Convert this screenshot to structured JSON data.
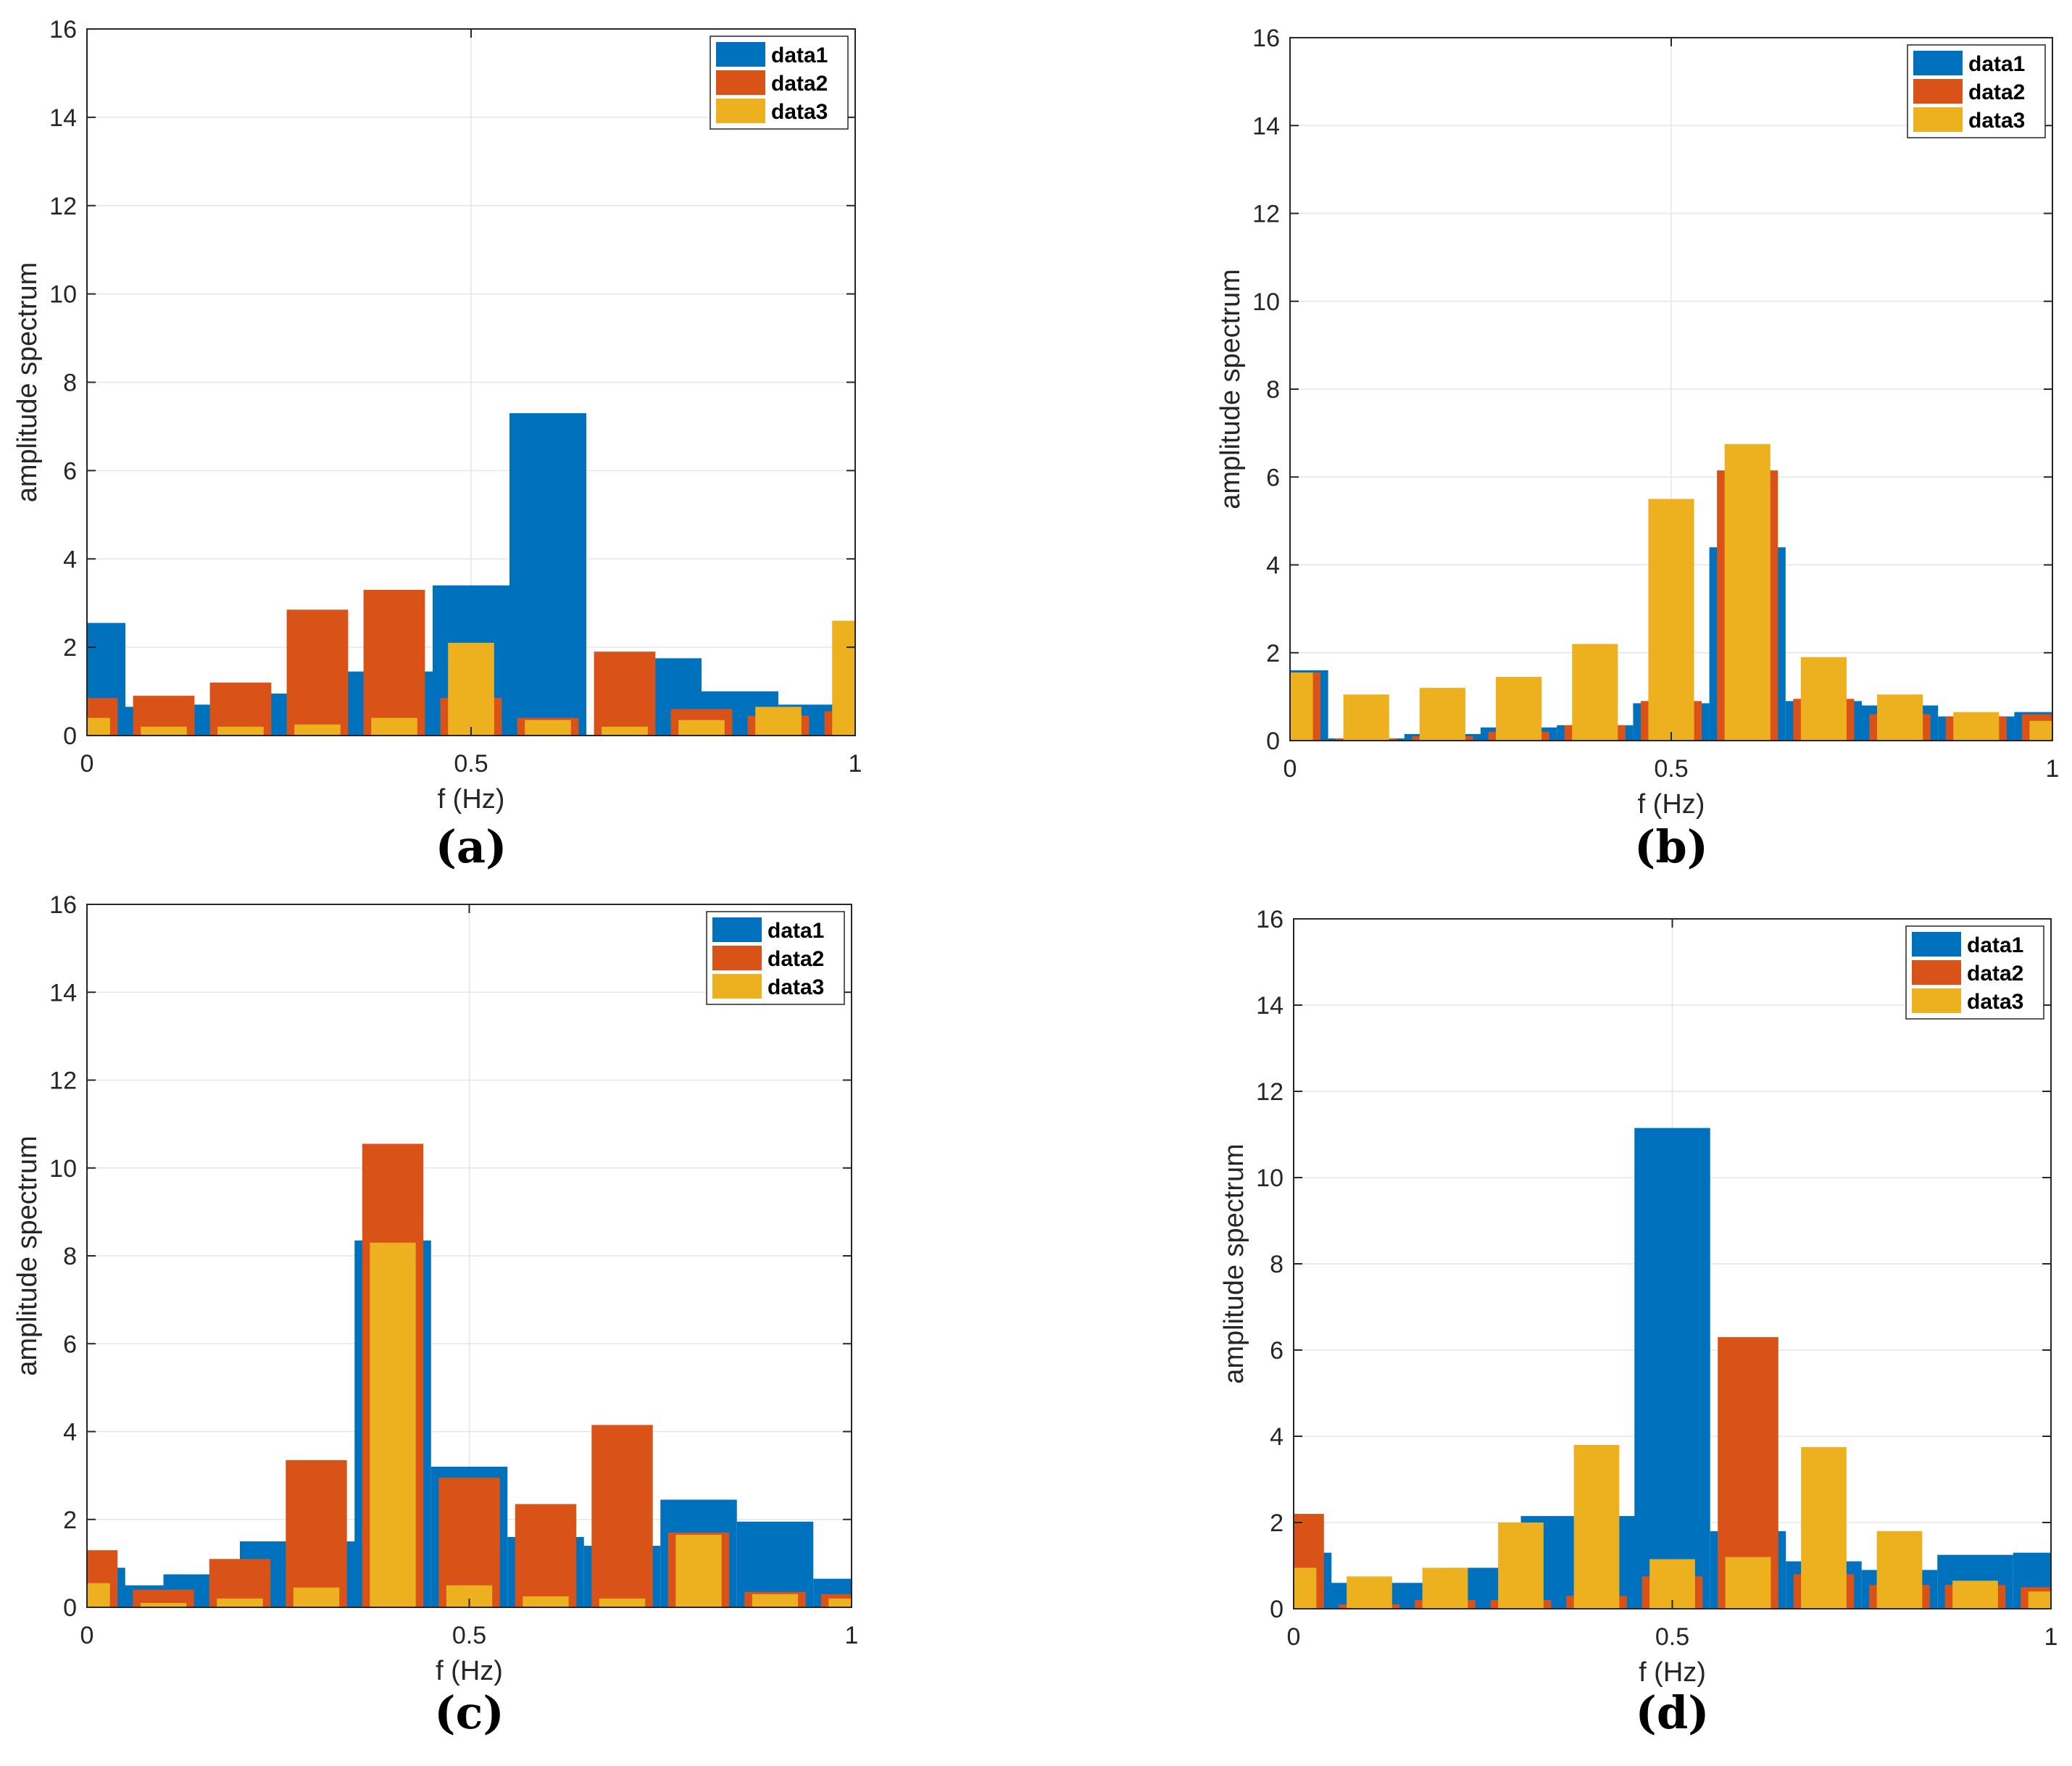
{
  "colors": {
    "data1": "#0072BD",
    "data2": "#D95319",
    "data3": "#EDB120",
    "axis": "#262626",
    "grid": "#e6e6e6"
  },
  "chart_data": [
    {
      "type": "bar",
      "panel_label": "(a)",
      "xlabel": "f (Hz)",
      "ylabel": "amplitude spectrum",
      "xlim": [
        0,
        1
      ],
      "ylim": [
        0,
        16
      ],
      "xticks": [
        0,
        0.5,
        1
      ],
      "xtick_labels": [
        "0",
        "0.5",
        "1"
      ],
      "yticks": [
        0,
        2,
        4,
        6,
        8,
        10,
        12,
        14,
        16
      ],
      "ytick_labels": [
        "0",
        "2",
        "4",
        "6",
        "8",
        "10",
        "12",
        "14",
        "16"
      ],
      "grid": true,
      "legend": "top-right",
      "series": [
        {
          "name": "data1",
          "x": [
            0,
            0.05,
            0.15,
            0.25,
            0.35,
            0.45,
            0.5,
            0.6,
            0.75,
            0.85,
            0.95,
            1.0
          ],
          "values": [
            2.55,
            0.65,
            0.7,
            0.95,
            1.45,
            1.45,
            3.4,
            7.3,
            1.75,
            1.0,
            0.7,
            0.6
          ],
          "width": [
            0.1,
            0.1,
            0.1,
            0.1,
            0.1,
            0.1,
            0.1,
            0.1,
            0.1,
            0.1,
            0.1,
            0.1
          ]
        },
        {
          "name": "data2",
          "x": [
            0,
            0.1,
            0.2,
            0.3,
            0.4,
            0.5,
            0.6,
            0.7,
            0.8,
            0.9,
            1.0
          ],
          "values": [
            0.85,
            0.9,
            1.2,
            2.85,
            3.3,
            0.85,
            0.4,
            1.9,
            0.6,
            0.45,
            0.55
          ],
          "width": [
            0.08,
            0.08,
            0.08,
            0.08,
            0.08,
            0.08,
            0.08,
            0.08,
            0.08,
            0.08,
            0.08
          ]
        },
        {
          "name": "data3",
          "x": [
            0,
            0.1,
            0.2,
            0.3,
            0.4,
            0.5,
            0.6,
            0.7,
            0.8,
            0.9,
            1.0
          ],
          "values": [
            0.4,
            0.2,
            0.2,
            0.25,
            0.4,
            2.1,
            0.35,
            0.2,
            0.35,
            0.65,
            2.6
          ],
          "width": [
            0.06,
            0.06,
            0.06,
            0.06,
            0.06,
            0.06,
            0.06,
            0.06,
            0.06,
            0.06,
            0.06
          ]
        }
      ]
    },
    {
      "type": "bar",
      "panel_label": "(b)",
      "xlabel": "f (Hz)",
      "ylabel": "amplitude spectrum",
      "xlim": [
        0,
        1
      ],
      "ylim": [
        0,
        16
      ],
      "xticks": [
        0,
        0.5,
        1
      ],
      "xtick_labels": [
        "0",
        "0.5",
        "1"
      ],
      "yticks": [
        0,
        2,
        4,
        6,
        8,
        10,
        12,
        14,
        16
      ],
      "ytick_labels": [
        "0",
        "2",
        "4",
        "6",
        "8",
        "10",
        "12",
        "14",
        "16"
      ],
      "grid": true,
      "legend": "top-right",
      "series": [
        {
          "name": "data1",
          "x": [
            0,
            0.1,
            0.2,
            0.3,
            0.4,
            0.5,
            0.6,
            0.7,
            0.8,
            0.9,
            1.0
          ],
          "values": [
            1.6,
            0.05,
            0.15,
            0.3,
            0.35,
            0.85,
            4.4,
            0.9,
            0.8,
            0.55,
            0.65
          ],
          "width": [
            0.1,
            0.1,
            0.1,
            0.1,
            0.1,
            0.1,
            0.1,
            0.1,
            0.1,
            0.1,
            0.1
          ]
        },
        {
          "name": "data2",
          "x": [
            0,
            0.1,
            0.2,
            0.3,
            0.4,
            0.5,
            0.6,
            0.7,
            0.8,
            0.9,
            1.0
          ],
          "values": [
            1.55,
            0.05,
            0.1,
            0.2,
            0.35,
            0.9,
            6.15,
            0.95,
            0.6,
            0.55,
            0.6
          ],
          "width": [
            0.08,
            0.08,
            0.08,
            0.08,
            0.08,
            0.08,
            0.08,
            0.08,
            0.08,
            0.08,
            0.08
          ]
        },
        {
          "name": "data3",
          "x": [
            0,
            0.1,
            0.2,
            0.3,
            0.4,
            0.5,
            0.6,
            0.7,
            0.8,
            0.9,
            1.0
          ],
          "values": [
            1.55,
            1.05,
            1.2,
            1.45,
            2.2,
            5.5,
            6.75,
            1.9,
            1.05,
            0.65,
            0.45
          ],
          "width": [
            0.06,
            0.06,
            0.06,
            0.06,
            0.06,
            0.06,
            0.06,
            0.06,
            0.06,
            0.06,
            0.06
          ]
        }
      ]
    },
    {
      "type": "bar",
      "panel_label": "(c)",
      "xlabel": "f (Hz)",
      "ylabel": "amplitude spectrum",
      "xlim": [
        0,
        1
      ],
      "ylim": [
        0,
        16
      ],
      "xticks": [
        0,
        0.5,
        1
      ],
      "xtick_labels": [
        "0",
        "0.5",
        "1"
      ],
      "yticks": [
        0,
        2,
        4,
        6,
        8,
        10,
        12,
        14,
        16
      ],
      "ytick_labels": [
        "0",
        "2",
        "4",
        "6",
        "8",
        "10",
        "12",
        "14",
        "16"
      ],
      "grid": true,
      "legend": "top-right",
      "series": [
        {
          "name": "data1",
          "x": [
            0,
            0.05,
            0.15,
            0.25,
            0.35,
            0.4,
            0.5,
            0.6,
            0.7,
            0.8,
            0.9,
            1.0
          ],
          "values": [
            0.9,
            0.5,
            0.75,
            1.5,
            1.5,
            8.35,
            3.2,
            1.6,
            1.4,
            2.45,
            1.95,
            0.65
          ],
          "width": [
            0.1,
            0.1,
            0.1,
            0.1,
            0.1,
            0.1,
            0.1,
            0.1,
            0.1,
            0.1,
            0.1,
            0.1
          ]
        },
        {
          "name": "data2",
          "x": [
            0,
            0.1,
            0.2,
            0.3,
            0.4,
            0.5,
            0.6,
            0.7,
            0.8,
            0.9,
            1.0
          ],
          "values": [
            1.3,
            0.4,
            1.1,
            3.35,
            10.55,
            2.95,
            2.35,
            4.15,
            1.7,
            0.35,
            0.3
          ],
          "width": [
            0.08,
            0.08,
            0.08,
            0.08,
            0.08,
            0.08,
            0.08,
            0.08,
            0.08,
            0.08,
            0.08
          ]
        },
        {
          "name": "data3",
          "x": [
            0,
            0.1,
            0.2,
            0.3,
            0.4,
            0.5,
            0.6,
            0.7,
            0.8,
            0.9,
            1.0
          ],
          "values": [
            0.55,
            0.1,
            0.2,
            0.45,
            8.3,
            0.5,
            0.25,
            0.2,
            1.65,
            0.3,
            0.2
          ],
          "width": [
            0.06,
            0.06,
            0.06,
            0.06,
            0.06,
            0.06,
            0.06,
            0.06,
            0.06,
            0.06,
            0.06
          ]
        }
      ]
    },
    {
      "type": "bar",
      "panel_label": "(d)",
      "xlabel": "f (Hz)",
      "ylabel": "amplitude spectrum",
      "xlim": [
        0,
        1
      ],
      "ylim": [
        0,
        16
      ],
      "xticks": [
        0,
        0.5,
        1
      ],
      "xtick_labels": [
        "0",
        "0.5",
        "1"
      ],
      "yticks": [
        0,
        2,
        4,
        6,
        8,
        10,
        12,
        14,
        16
      ],
      "ytick_labels": [
        "0",
        "2",
        "4",
        "6",
        "8",
        "10",
        "12",
        "14",
        "16"
      ],
      "grid": true,
      "legend": "top-right",
      "series": [
        {
          "name": "data1",
          "x": [
            0,
            0.05,
            0.15,
            0.25,
            0.35,
            0.45,
            0.5,
            0.6,
            0.7,
            0.8,
            0.9,
            1.0
          ],
          "values": [
            1.3,
            0.6,
            0.6,
            0.95,
            2.15,
            2.15,
            11.15,
            1.8,
            1.1,
            0.9,
            1.25,
            1.3
          ],
          "width": [
            0.1,
            0.1,
            0.1,
            0.1,
            0.1,
            0.1,
            0.1,
            0.1,
            0.1,
            0.1,
            0.1,
            0.1
          ]
        },
        {
          "name": "data2",
          "x": [
            0,
            0.1,
            0.2,
            0.3,
            0.4,
            0.5,
            0.6,
            0.7,
            0.8,
            0.9,
            1.0
          ],
          "values": [
            2.2,
            0.1,
            0.2,
            0.2,
            0.3,
            0.75,
            6.3,
            0.8,
            0.55,
            0.55,
            0.5
          ],
          "width": [
            0.08,
            0.08,
            0.08,
            0.08,
            0.08,
            0.08,
            0.08,
            0.08,
            0.08,
            0.08,
            0.08
          ]
        },
        {
          "name": "data3",
          "x": [
            0,
            0.1,
            0.2,
            0.3,
            0.4,
            0.5,
            0.6,
            0.7,
            0.8,
            0.9,
            1.0
          ],
          "values": [
            0.95,
            0.75,
            0.95,
            2.0,
            3.8,
            1.15,
            1.2,
            3.75,
            1.8,
            0.65,
            0.4
          ],
          "width": [
            0.06,
            0.06,
            0.06,
            0.06,
            0.06,
            0.06,
            0.06,
            0.06,
            0.06,
            0.06,
            0.06
          ]
        }
      ]
    }
  ]
}
